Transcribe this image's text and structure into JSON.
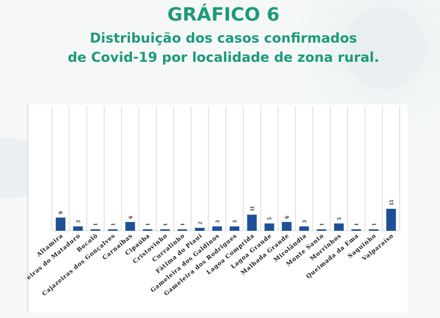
{
  "header": {
    "title": "GRÁFICO 6",
    "subtitle_line1": "Distribuição dos casos confirmados",
    "subtitle_line2": "de Covid-19 por localidade de zona rural."
  },
  "colors": {
    "title": "#1d9a78",
    "bar": "#1f4f96"
  },
  "chart_data": {
    "type": "bar",
    "title": "GRÁFICO 6 - Distribuição dos casos confirmados de Covid-19 por localidade de zona rural.",
    "categories": [
      "Altamira",
      "eiras do Mataduro",
      "Bocolô",
      "Cajazeiras dos Gonçalves",
      "Carnaíbas",
      "Cipaúba",
      "Cristovinho",
      "Curralinho",
      "Fátima do Piauí",
      "Gameleira dos Galdinos",
      "Gameleira dos Rodrigues",
      "Lagoa Comprida",
      "Lagoa Grande",
      "Malhada Grande",
      "Mirolândia",
      "Monte Santo",
      "Morrinhos",
      "Queimada da Ema",
      "Saquinho",
      "Valparaíso"
    ],
    "values": [
      9,
      3,
      1,
      1,
      6,
      1,
      1,
      1,
      2,
      3,
      3,
      11,
      5,
      6,
      3,
      1,
      5,
      1,
      1,
      15
    ],
    "xlabel": "",
    "ylabel": "",
    "ylim": [
      0,
      15
    ],
    "grid": "vertical",
    "legend": "none"
  }
}
